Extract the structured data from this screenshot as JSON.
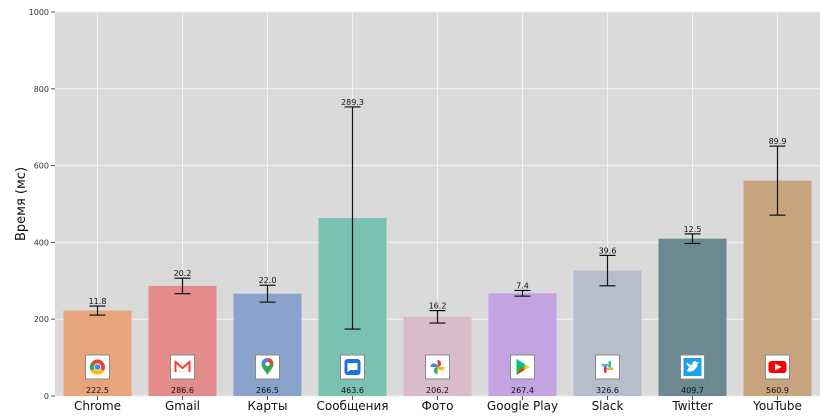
{
  "chart_data": {
    "type": "bar",
    "title": "",
    "xlabel": "",
    "ylabel": "Время (мс)",
    "ylim": [
      0,
      1000
    ],
    "yticks": [
      0,
      200,
      400,
      600,
      800,
      1000
    ],
    "grid": true,
    "categories": [
      "Chrome",
      "Gmail",
      "Карты",
      "Сообщения",
      "Фото",
      "Google Play",
      "Slack",
      "Twitter",
      "YouTube"
    ],
    "values": [
      222.5,
      286.6,
      266.5,
      463.6,
      206.2,
      267.4,
      326.6,
      409.7,
      560.9
    ],
    "errors": [
      11.8,
      20.2,
      22.0,
      289.3,
      16.2,
      7.4,
      39.6,
      12.5,
      89.9
    ],
    "value_labels": [
      "222.5",
      "286.6",
      "266.5",
      "463.6",
      "206.2",
      "267.4",
      "326.6",
      "409.7",
      "560.9"
    ],
    "error_labels": [
      "11.8",
      "20.2",
      "22.0",
      "289.3",
      "16.2",
      "7.4",
      "39.6",
      "12.5",
      "89.9"
    ],
    "colors": [
      "#e8a57c",
      "#e48b8c",
      "#8aa2cc",
      "#79c2b1",
      "#d8bcc9",
      "#c3a3e2",
      "#b6bdcd",
      "#6c8891",
      "#c7a47e"
    ],
    "icons": [
      "chrome-icon",
      "gmail-icon",
      "maps-icon",
      "messages-icon",
      "photos-icon",
      "google-play-icon",
      "slack-icon",
      "twitter-icon",
      "youtube-icon"
    ]
  }
}
